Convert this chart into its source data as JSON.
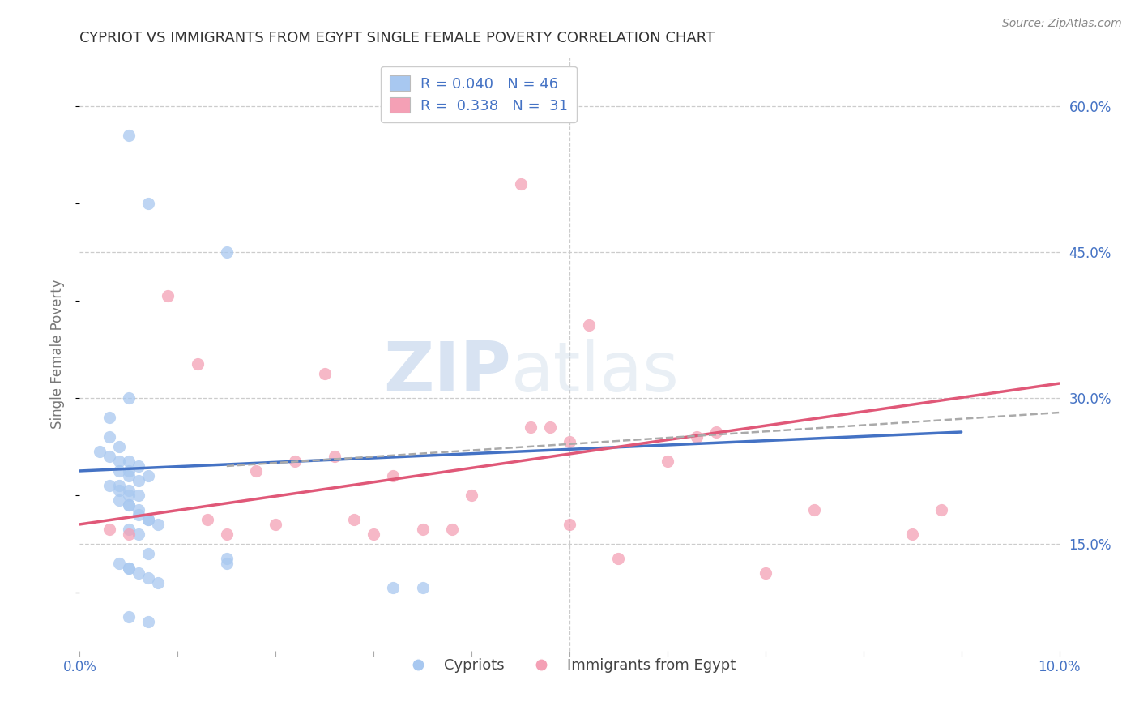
{
  "title": "CYPRIOT VS IMMIGRANTS FROM EGYPT SINGLE FEMALE POVERTY CORRELATION CHART",
  "source": "Source: ZipAtlas.com",
  "ylabel": "Single Female Poverty",
  "xlim": [
    0.0,
    10.0
  ],
  "ylim": [
    4.0,
    65.0
  ],
  "ytick_vals_right": [
    15.0,
    30.0,
    45.0,
    60.0
  ],
  "ytick_labels_right": [
    "15.0%",
    "30.0%",
    "45.0%",
    "60.0%"
  ],
  "legend_r1": "R = 0.040",
  "legend_n1": "N = 46",
  "legend_r2": "R = 0.338",
  "legend_n2": "N = 31",
  "legend_label1": "Cypriots",
  "legend_label2": "Immigrants from Egypt",
  "watermark_zip": "ZIP",
  "watermark_atlas": "atlas",
  "dot_color_blue": "#a8c8f0",
  "dot_color_pink": "#f4a0b5",
  "line_color_blue": "#4472c4",
  "line_color_pink": "#e05878",
  "line_color_dashed": "#aaaaaa",
  "background_color": "#ffffff",
  "grid_color": "#cccccc",
  "title_color": "#333333",
  "axis_label_color": "#4472c4",
  "blue_dots_x": [
    0.5,
    0.7,
    1.5,
    0.5,
    0.3,
    0.3,
    0.4,
    0.2,
    0.3,
    0.4,
    0.5,
    0.6,
    0.4,
    0.5,
    0.5,
    0.7,
    0.6,
    0.4,
    0.3,
    0.4,
    0.5,
    0.5,
    0.6,
    0.4,
    0.5,
    0.5,
    0.6,
    0.6,
    0.7,
    0.7,
    0.8,
    0.5,
    0.6,
    0.7,
    1.5,
    1.5,
    0.4,
    0.5,
    0.5,
    0.6,
    0.7,
    0.8,
    3.2,
    3.5,
    0.5,
    0.7
  ],
  "blue_dots_y": [
    57.0,
    50.0,
    45.0,
    30.0,
    28.0,
    26.0,
    25.0,
    24.5,
    24.0,
    23.5,
    23.5,
    23.0,
    22.5,
    22.5,
    22.0,
    22.0,
    21.5,
    21.0,
    21.0,
    20.5,
    20.5,
    20.0,
    20.0,
    19.5,
    19.0,
    19.0,
    18.5,
    18.0,
    17.5,
    17.5,
    17.0,
    16.5,
    16.0,
    14.0,
    13.5,
    13.0,
    13.0,
    12.5,
    12.5,
    12.0,
    11.5,
    11.0,
    10.5,
    10.5,
    7.5,
    7.0
  ],
  "pink_dots_x": [
    0.3,
    0.5,
    0.9,
    1.2,
    1.3,
    2.2,
    2.5,
    2.6,
    2.8,
    3.5,
    4.6,
    4.8,
    5.0,
    5.2,
    6.0,
    6.3,
    6.5,
    7.5,
    8.5,
    1.5,
    1.8,
    2.0,
    3.0,
    3.2,
    3.8,
    4.0,
    5.5,
    5.0,
    7.0,
    8.8,
    4.5
  ],
  "pink_dots_y": [
    16.5,
    16.0,
    40.5,
    33.5,
    17.5,
    23.5,
    32.5,
    24.0,
    17.5,
    16.5,
    27.0,
    27.0,
    25.5,
    37.5,
    23.5,
    26.0,
    26.5,
    18.5,
    16.0,
    16.0,
    22.5,
    17.0,
    16.0,
    22.0,
    16.5,
    20.0,
    13.5,
    17.0,
    12.0,
    18.5,
    52.0
  ],
  "blue_line_x": [
    0.0,
    9.0
  ],
  "blue_line_y": [
    22.5,
    26.5
  ],
  "pink_line_x": [
    0.0,
    10.0
  ],
  "pink_line_y": [
    17.0,
    31.5
  ],
  "dashed_line_x": [
    1.5,
    10.0
  ],
  "dashed_line_y": [
    23.0,
    28.5
  ]
}
